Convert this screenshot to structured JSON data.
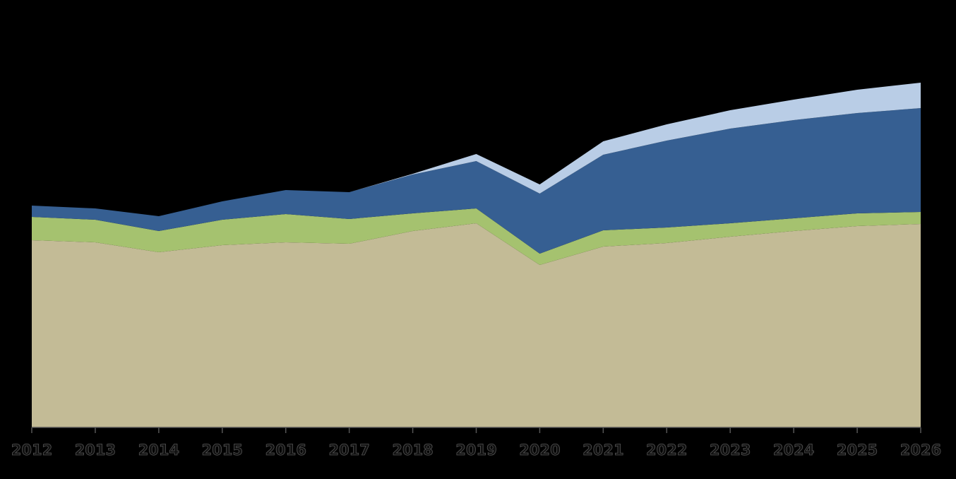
{
  "chart_data": {
    "type": "stacked_area",
    "categories": [
      "2012",
      "2013",
      "2014",
      "2015",
      "2016",
      "2017",
      "2018",
      "2019",
      "2020",
      "2021",
      "2022",
      "2023",
      "2024",
      "2025",
      "2026"
    ],
    "series": [
      {
        "color": "#c3bb96",
        "values": [
          265,
          262,
          248,
          258,
          262,
          260,
          278,
          289,
          230,
          256,
          261,
          270,
          278,
          285,
          288
        ]
      },
      {
        "color": "#a5c26f",
        "values": [
          33,
          32,
          30,
          36,
          40,
          35,
          25,
          21,
          16,
          23,
          22,
          19,
          18,
          18,
          17
        ]
      },
      {
        "color": "#365f92",
        "values": [
          16,
          16,
          21,
          26,
          34,
          38,
          55,
          67,
          85,
          107,
          123,
          134,
          139,
          142,
          147
        ]
      },
      {
        "color": "#b9cde6",
        "values": [
          0,
          0,
          0,
          0,
          0,
          0,
          1,
          10,
          13,
          19,
          23,
          26,
          29,
          33,
          36
        ]
      }
    ],
    "ylim": [
      0,
      500
    ]
  }
}
